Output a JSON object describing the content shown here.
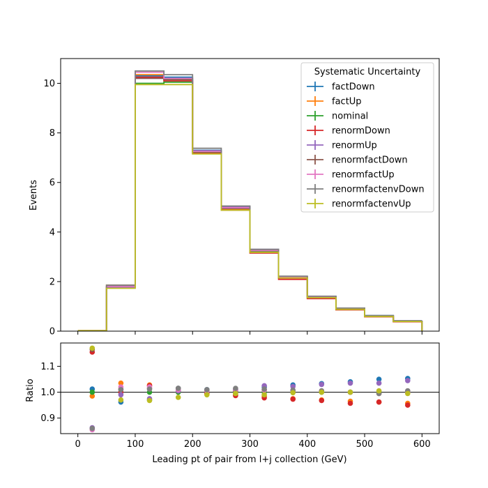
{
  "chart_data": {
    "type": "line",
    "x_edges": [
      0,
      50,
      100,
      150,
      200,
      250,
      300,
      350,
      400,
      450,
      500,
      550,
      600
    ],
    "x_centers": [
      25,
      75,
      125,
      175,
      225,
      275,
      325,
      375,
      425,
      475,
      525,
      575
    ],
    "xlim": [
      -30,
      630
    ],
    "xlabel": "Leading pt of pair from l+j collection (GeV)",
    "xticks": [
      0,
      100,
      200,
      300,
      400,
      500,
      600
    ],
    "top": {
      "ylabel": "Events",
      "ylim": [
        0,
        11
      ],
      "yticks": [
        0,
        2,
        4,
        6,
        8,
        10
      ]
    },
    "bottom": {
      "ylabel": "Ratio",
      "ylim": [
        0.84,
        1.19
      ],
      "yticks": [
        0.9,
        1.0,
        1.1
      ],
      "ytick_labels": [
        "0.9",
        "1.0",
        "1.1"
      ],
      "reference_line": 1.0
    },
    "legend": {
      "title": "Systematic Uncertainty",
      "placement": "top-right"
    },
    "series": [
      {
        "name": "factDown",
        "color": "#1f77b4",
        "values": [
          0.018,
          1.8,
          10.3,
          10.25,
          7.3,
          5.0,
          3.28,
          2.2,
          1.4,
          0.93,
          0.63,
          0.42
        ],
        "ratio": [
          1.012,
          0.962,
          0.97,
          1.015,
          1.01,
          1.01,
          1.02,
          1.028,
          1.033,
          1.04,
          1.05,
          1.053
        ]
      },
      {
        "name": "factUp",
        "color": "#ff7f0e",
        "values": [
          0.017,
          1.85,
          10.35,
          10.15,
          7.2,
          4.9,
          3.2,
          2.14,
          1.32,
          0.86,
          0.58,
          0.38
        ],
        "ratio": [
          0.985,
          1.035,
          1.028,
          1.005,
          0.992,
          0.992,
          0.985,
          0.975,
          0.97,
          0.965,
          0.962,
          0.957
        ]
      },
      {
        "name": "nominal",
        "color": "#2ca02c",
        "values": [
          0.017,
          1.78,
          10.0,
          10.05,
          7.22,
          4.95,
          3.22,
          2.15,
          1.35,
          0.9,
          0.6,
          0.4
        ],
        "ratio": [
          1.0,
          1.0,
          1.0,
          1.0,
          1.0,
          1.0,
          1.0,
          1.0,
          1.0,
          1.0,
          1.0,
          1.0
        ]
      },
      {
        "name": "renormDown",
        "color": "#d62728",
        "values": [
          0.02,
          1.78,
          10.25,
          10.1,
          7.18,
          4.88,
          3.15,
          2.09,
          1.31,
          0.86,
          0.58,
          0.38
        ],
        "ratio": [
          1.155,
          1.0,
          1.025,
          1.005,
          0.995,
          0.987,
          0.978,
          0.973,
          0.968,
          0.957,
          0.962,
          0.95
        ]
      },
      {
        "name": "renormUp",
        "color": "#9467bd",
        "values": [
          0.015,
          1.77,
          10.2,
          10.2,
          7.28,
          5.02,
          3.3,
          2.2,
          1.39,
          0.93,
          0.62,
          0.42
        ],
        "ratio": [
          0.863,
          0.99,
          0.975,
          1.005,
          1.005,
          1.012,
          1.025,
          1.022,
          1.03,
          1.035,
          1.035,
          1.045
        ]
      },
      {
        "name": "renormfactDown",
        "color": "#8c564b",
        "values": [
          0.02,
          1.85,
          10.2,
          10.15,
          7.25,
          4.95,
          3.25,
          2.18,
          1.38,
          0.91,
          0.61,
          0.4
        ],
        "ratio": [
          1.165,
          1.012,
          1.015,
          1.015,
          1.005,
          1.005,
          1.008,
          1.005,
          1.005,
          1.0,
          0.995,
          1.005
        ]
      },
      {
        "name": "renormfactUp",
        "color": "#e377c2",
        "values": [
          0.015,
          1.8,
          10.45,
          10.2,
          7.25,
          4.98,
          3.25,
          2.18,
          1.37,
          0.9,
          0.6,
          0.4
        ],
        "ratio": [
          0.855,
          1.02,
          1.02,
          1.01,
          1.005,
          1.01,
          1.008,
          1.005,
          1.005,
          1.0,
          1.005,
          1.0
        ]
      },
      {
        "name": "renormfactenvDown",
        "color": "#7f7f7f",
        "values": [
          0.015,
          1.85,
          10.5,
          10.35,
          7.38,
          5.05,
          3.3,
          2.22,
          1.41,
          0.93,
          0.63,
          0.42
        ],
        "ratio": [
          0.86,
          1.01,
          1.012,
          1.015,
          1.01,
          1.015,
          1.012,
          1.008,
          1.005,
          1.0,
          0.995,
          1.005
        ]
      },
      {
        "name": "renormfactenvUp",
        "color": "#bcbd22",
        "values": [
          0.02,
          1.73,
          9.95,
          9.95,
          7.15,
          4.88,
          3.18,
          2.15,
          1.35,
          0.88,
          0.59,
          0.39
        ],
        "ratio": [
          1.17,
          0.97,
          0.968,
          0.98,
          0.99,
          0.995,
          0.99,
          0.998,
          1.0,
          1.0,
          1.005,
          0.995
        ]
      }
    ]
  }
}
